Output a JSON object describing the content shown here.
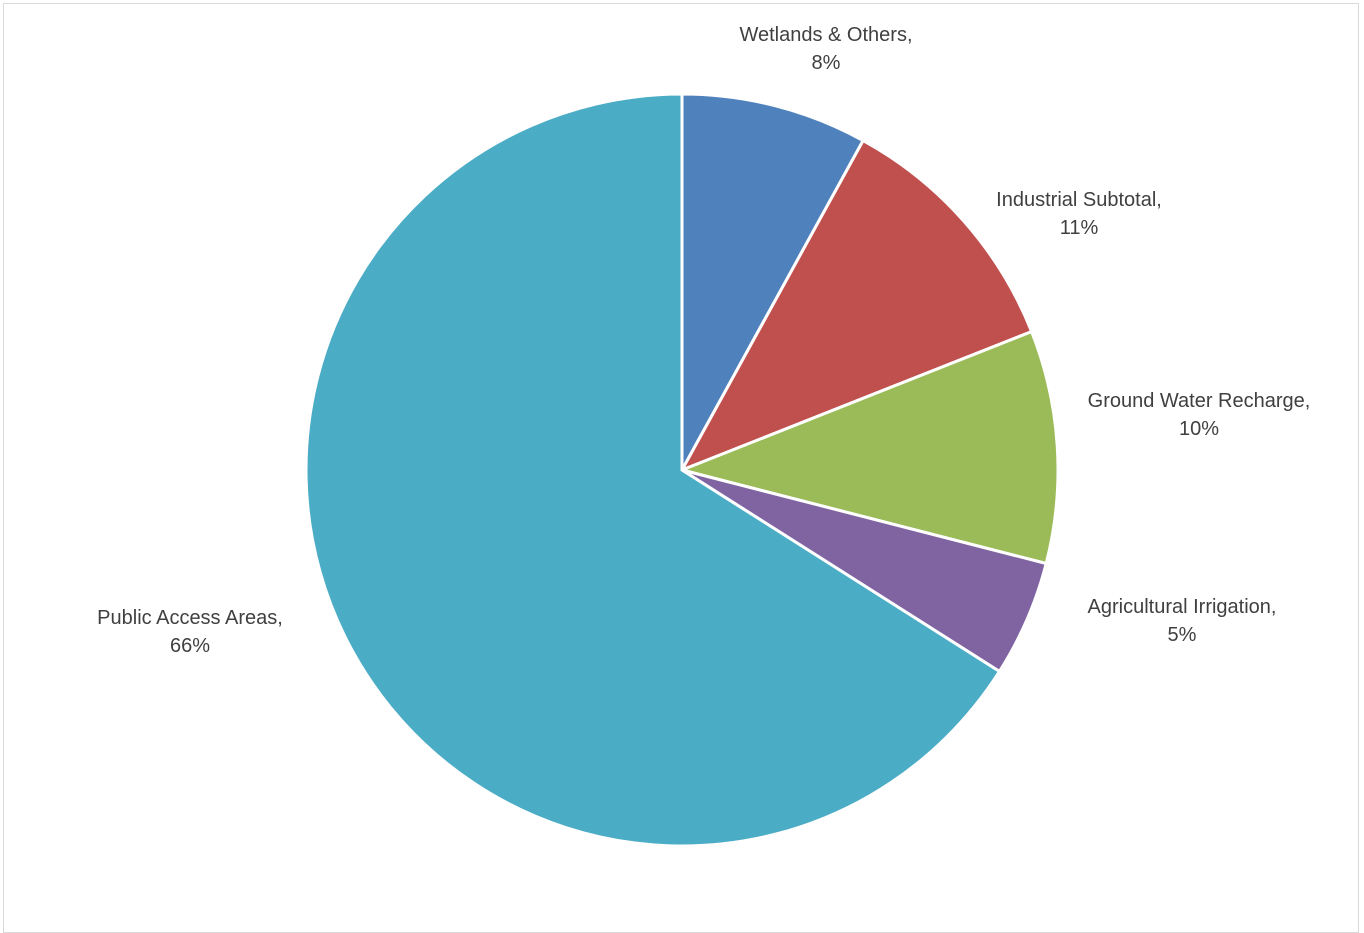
{
  "chart_data": {
    "type": "pie",
    "title": "",
    "start_angle_deg": 0,
    "direction": "clockwise",
    "legend": "none",
    "slices": [
      {
        "name": "Wetlands & Others",
        "value": 8,
        "label_line1": "Wetlands & Others,",
        "label_line2": "8%",
        "color": "#4f81bd"
      },
      {
        "name": "Industrial Subtotal",
        "value": 11,
        "label_line1": "Industrial Subtotal,",
        "label_line2": "11%",
        "color": "#c0504d"
      },
      {
        "name": "Ground Water Recharge",
        "value": 10,
        "label_line1": "Ground Water Recharge,",
        "label_line2": "10%",
        "color": "#9bbb59"
      },
      {
        "name": "Agricultural Irrigation",
        "value": 5,
        "label_line1": "Agricultural Irrigation,",
        "label_line2": "5%",
        "color": "#8064a2"
      },
      {
        "name": "Public Access Areas",
        "value": 66,
        "label_line1": "Public Access Areas,",
        "label_line2": "66%",
        "color": "#4bacc6"
      }
    ]
  }
}
